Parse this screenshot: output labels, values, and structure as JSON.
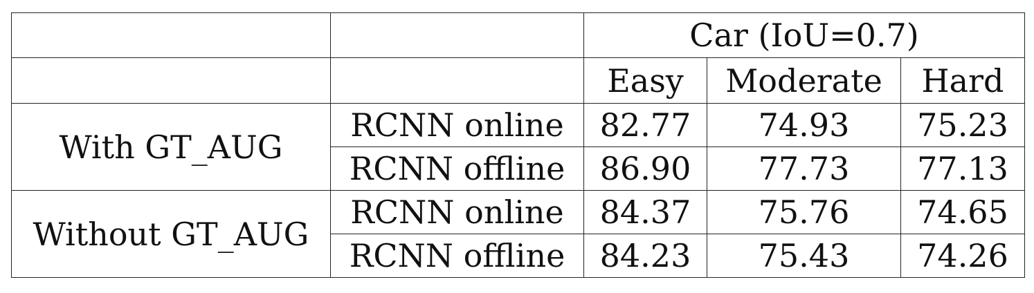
{
  "table": {
    "header": {
      "group_title": "Car (IoU=0.7)",
      "columns": [
        "Easy",
        "Moderate",
        "Hard"
      ]
    },
    "groups": [
      {
        "label": "With GT_AUG",
        "rows": [
          {
            "method": "RCNN online",
            "values": [
              "82.77",
              "74.93",
              "75.23"
            ]
          },
          {
            "method": "RCNN offline",
            "values": [
              "86.90",
              "77.73",
              "77.13"
            ]
          }
        ]
      },
      {
        "label": "Without GT_AUG",
        "rows": [
          {
            "method": "RCNN online",
            "values": [
              "84.37",
              "75.76",
              "74.65"
            ]
          },
          {
            "method": "RCNN offline",
            "values": [
              "84.23",
              "75.43",
              "74.26"
            ]
          }
        ]
      }
    ]
  }
}
